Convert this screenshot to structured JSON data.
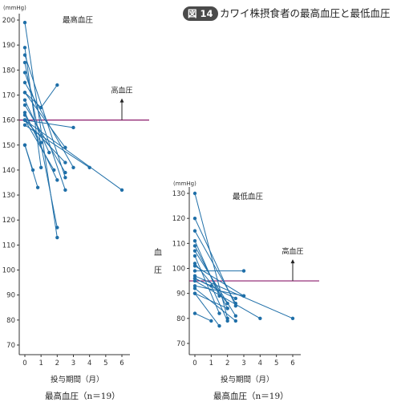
{
  "figure": {
    "tag": "図 14",
    "title": "カワイ株摂食者の最高血圧と最低血圧"
  },
  "chart_data": [
    {
      "type": "line",
      "title": "最高血圧",
      "unit": "(mmHg)",
      "xlabel": "投与期間（月）",
      "caption": "最高血圧（n＝19）",
      "ylim": [
        70,
        200
      ],
      "yticks": [
        70,
        80,
        90,
        100,
        110,
        120,
        130,
        140,
        150,
        160,
        170,
        180,
        190,
        200
      ],
      "xticks": [
        0,
        1,
        2,
        3,
        4,
        5,
        6
      ],
      "xtick_labels": [
        "0",
        "1",
        "2",
        "3",
        "4",
        "5",
        "6"
      ],
      "threshold": 160,
      "threshold_label": "高血圧",
      "threshold_color": "#8b1a6b",
      "series_color": "#1f6fa8",
      "series": [
        {
          "x": [
            0,
            2
          ],
          "y": [
            199,
            113
          ]
        },
        {
          "x": [
            0,
            1
          ],
          "y": [
            189,
            141
          ]
        },
        {
          "x": [
            0,
            2.5
          ],
          "y": [
            186,
            137
          ]
        },
        {
          "x": [
            0,
            2
          ],
          "y": [
            183,
            117
          ]
        },
        {
          "x": [
            0,
            2.5
          ],
          "y": [
            179,
            132
          ]
        },
        {
          "x": [
            0,
            3
          ],
          "y": [
            175,
            141
          ]
        },
        {
          "x": [
            0,
            2.5
          ],
          "y": [
            171,
            149
          ]
        },
        {
          "x": [
            0,
            1.5
          ],
          "y": [
            168,
            147
          ]
        },
        {
          "x": [
            0,
            2.5
          ],
          "y": [
            166,
            139
          ]
        },
        {
          "x": [
            0,
            2
          ],
          "y": [
            163,
            136
          ]
        },
        {
          "x": [
            0,
            6
          ],
          "y": [
            160,
            132
          ]
        },
        {
          "x": [
            0,
            2.5
          ],
          "y": [
            160,
            143
          ]
        },
        {
          "x": [
            0,
            3
          ],
          "y": [
            160,
            157
          ]
        },
        {
          "x": [
            0,
            0.8
          ],
          "y": [
            150,
            133
          ]
        },
        {
          "x": [
            0,
            0.5
          ],
          "y": [
            150,
            140
          ]
        },
        {
          "x": [
            0,
            1,
            2
          ],
          "y": [
            171,
            165,
            174
          ]
        },
        {
          "x": [
            0,
            4
          ],
          "y": [
            158,
            141
          ]
        },
        {
          "x": [
            0,
            1
          ],
          "y": [
            162,
            151
          ]
        },
        {
          "x": [
            0,
            1.8
          ],
          "y": [
            160,
            140
          ]
        }
      ]
    },
    {
      "type": "line",
      "title": "最低血圧",
      "unit": "(mmHg)",
      "ylabel": "血圧",
      "xlabel": "投与期間（月）",
      "caption": "最高血圧（n＝19）",
      "ylim": [
        70,
        130
      ],
      "yticks": [
        70,
        80,
        90,
        100,
        110,
        120,
        130
      ],
      "xticks": [
        0,
        1,
        2,
        3,
        4,
        5,
        6
      ],
      "xtick_labels": [
        "0",
        "1",
        "2",
        "3",
        "4",
        "5",
        "6"
      ],
      "threshold": 95,
      "threshold_label": "高血圧",
      "threshold_color": "#8b1a6b",
      "series_color": "#1f6fa8",
      "series": [
        {
          "x": [
            0,
            2
          ],
          "y": [
            130,
            80
          ]
        },
        {
          "x": [
            0,
            2.5
          ],
          "y": [
            120,
            85
          ]
        },
        {
          "x": [
            0,
            2.5
          ],
          "y": [
            115,
            86
          ]
        },
        {
          "x": [
            0,
            1.5
          ],
          "y": [
            111,
            89
          ]
        },
        {
          "x": [
            0,
            2
          ],
          "y": [
            109,
            84
          ]
        },
        {
          "x": [
            0,
            2.5
          ],
          "y": [
            107,
            81
          ]
        },
        {
          "x": [
            0,
            1.5
          ],
          "y": [
            105,
            82
          ]
        },
        {
          "x": [
            0,
            2
          ],
          "y": [
            102,
            86
          ]
        },
        {
          "x": [
            0,
            3
          ],
          "y": [
            101,
            89
          ]
        },
        {
          "x": [
            0,
            3
          ],
          "y": [
            99,
            99
          ]
        },
        {
          "x": [
            0,
            6
          ],
          "y": [
            97,
            80
          ]
        },
        {
          "x": [
            0,
            2.5
          ],
          "y": [
            96,
            88
          ]
        },
        {
          "x": [
            0,
            4
          ],
          "y": [
            95,
            80
          ]
        },
        {
          "x": [
            0,
            1,
            2
          ],
          "y": [
            96,
            93,
            79
          ]
        },
        {
          "x": [
            0,
            2.5
          ],
          "y": [
            92,
            79
          ]
        },
        {
          "x": [
            0,
            2
          ],
          "y": [
            90,
            84
          ]
        },
        {
          "x": [
            0,
            1.5
          ],
          "y": [
            90,
            77
          ]
        },
        {
          "x": [
            0,
            1
          ],
          "y": [
            82,
            79
          ]
        },
        {
          "x": [
            0,
            3
          ],
          "y": [
            93,
            89
          ]
        }
      ]
    }
  ]
}
